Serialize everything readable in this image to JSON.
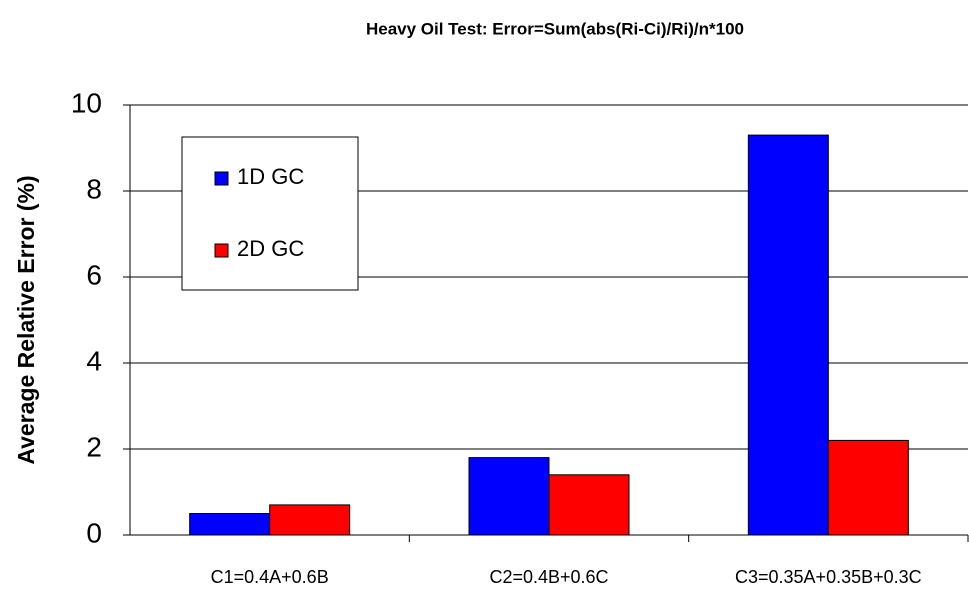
{
  "chart_data": {
    "type": "bar",
    "title": "Heavy Oil Test: Error=Sum(abs(Ri-Ci)/Ri)/n*100",
    "y_label": "Average Relative Error  (%)",
    "categories": [
      "C1=0.4A+0.6B",
      "C2=0.4B+0.6C",
      "C3=0.35A+0.35B+0.3C"
    ],
    "series": [
      {
        "name": "1D GC",
        "color": "#0000ff",
        "values": [
          0.5,
          1.8,
          9.3
        ]
      },
      {
        "name": "2D GC",
        "color": "#ff0000",
        "values": [
          0.7,
          1.4,
          2.2
        ]
      }
    ],
    "ylim": [
      0,
      10
    ],
    "yticks": [
      0,
      2,
      4,
      6,
      8,
      10
    ],
    "grid": true,
    "legend": "upper left"
  }
}
